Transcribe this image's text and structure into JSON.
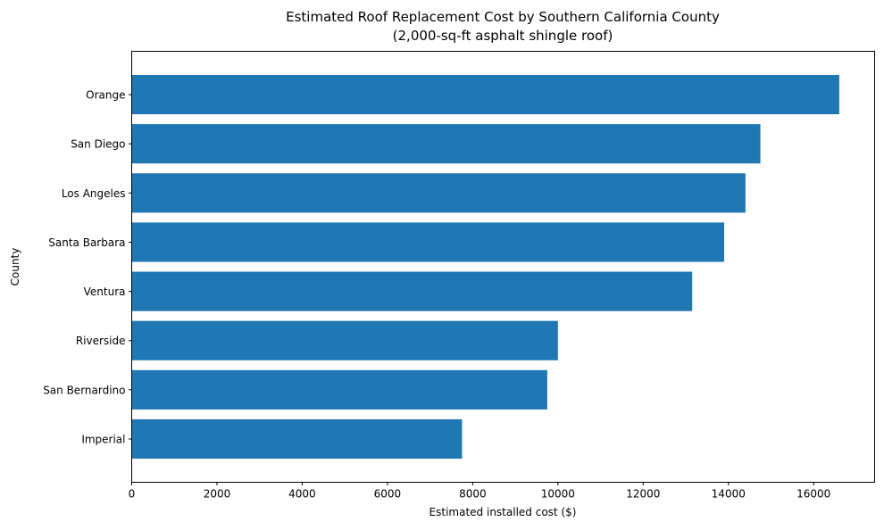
{
  "chart_data": {
    "type": "bar",
    "orientation": "horizontal",
    "title": "Estimated Roof Replacement Cost by Southern California County",
    "subtitle": "(2,000-sq-ft asphalt shingle roof)",
    "xlabel": "Estimated installed cost ($)",
    "ylabel": "County",
    "categories": [
      "Orange",
      "San Diego",
      "Los Angeles",
      "Santa Barbara",
      "Ventura",
      "Riverside",
      "San Bernardino",
      "Imperial"
    ],
    "values": [
      16600,
      14750,
      14400,
      13900,
      13150,
      10000,
      9750,
      7750
    ],
    "xlim": [
      0,
      17430
    ],
    "xticks": [
      0,
      2000,
      4000,
      6000,
      8000,
      10000,
      12000,
      14000,
      16000
    ],
    "xtick_labels": [
      "0",
      "2000",
      "4000",
      "6000",
      "8000",
      "10000",
      "12000",
      "14000",
      "16000"
    ],
    "grid": false,
    "bar_color": "#1f77b4"
  }
}
